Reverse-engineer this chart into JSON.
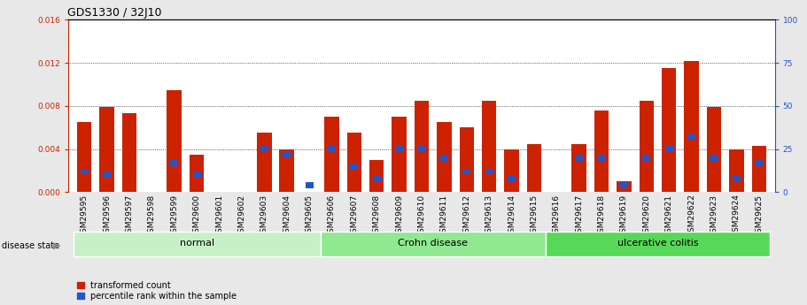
{
  "title": "GDS1330 / 32J10",
  "samples": [
    "GSM29595",
    "GSM29596",
    "GSM29597",
    "GSM29598",
    "GSM29599",
    "GSM29600",
    "GSM29601",
    "GSM29602",
    "GSM29603",
    "GSM29604",
    "GSM29605",
    "GSM29606",
    "GSM29607",
    "GSM29608",
    "GSM29609",
    "GSM29610",
    "GSM29611",
    "GSM29612",
    "GSM29613",
    "GSM29614",
    "GSM29615",
    "GSM29616",
    "GSM29617",
    "GSM29618",
    "GSM29619",
    "GSM29620",
    "GSM29621",
    "GSM29622",
    "GSM29623",
    "GSM29624",
    "GSM29625"
  ],
  "red_values": [
    0.0065,
    0.0079,
    0.0073,
    0.0,
    0.0095,
    0.0035,
    0.0,
    0.0,
    0.0055,
    0.004,
    0.0,
    0.007,
    0.0055,
    0.003,
    0.007,
    0.0085,
    0.0065,
    0.006,
    0.0085,
    0.004,
    0.0045,
    0.0,
    0.0045,
    0.0076,
    0.001,
    0.0085,
    0.0115,
    0.0122,
    0.0079,
    0.004,
    0.0043
  ],
  "blue_pct": [
    12,
    10,
    0,
    0,
    17,
    10,
    0,
    0,
    25,
    22,
    4,
    25,
    15,
    8,
    25,
    25,
    20,
    12,
    12,
    8,
    0,
    0,
    20,
    20,
    4,
    20,
    25,
    32,
    20,
    8,
    17
  ],
  "groups": [
    {
      "label": "normal",
      "start": 0,
      "end": 10,
      "color": "#c8f0c8"
    },
    {
      "label": "Crohn disease",
      "start": 11,
      "end": 20,
      "color": "#90e890"
    },
    {
      "label": "ulcerative colitis",
      "start": 21,
      "end": 30,
      "color": "#58d858"
    }
  ],
  "ylim_left": [
    0,
    0.016
  ],
  "ylim_right": [
    0,
    100
  ],
  "yticks_left": [
    0,
    0.004,
    0.008,
    0.012,
    0.016
  ],
  "yticks_right": [
    0,
    25,
    50,
    75,
    100
  ],
  "bar_color": "#cc2200",
  "marker_color": "#2255cc",
  "bg_color": "#e8e8e8",
  "plot_bg": "#ffffff",
  "title_fontsize": 9,
  "tick_fontsize": 6.5,
  "label_fontsize": 8
}
